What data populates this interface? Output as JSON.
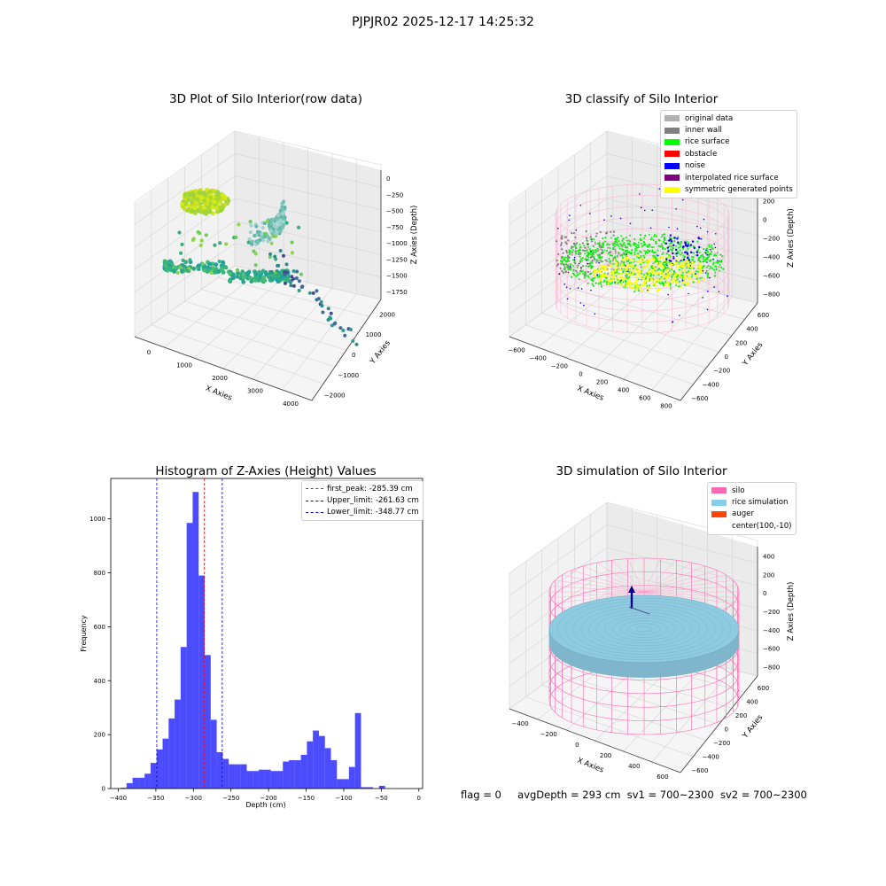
{
  "figure": {
    "suptitle": "PJPJR02 2025-12-17 14:25:32"
  },
  "status": {
    "flag": "flag = 0",
    "avg_depth": "avgDepth = 293 cm",
    "sv1": "sv1 = 700~2300",
    "sv2": "sv2 = 700~2300"
  },
  "panels": {
    "raw": {
      "title": "3D Plot of Silo Interior(row data)",
      "xlabel": "X Axies",
      "ylabel": "Y Axies",
      "zlabel": "Z Axies (Depth)",
      "xticks": [
        "0",
        "1000",
        "2000",
        "3000",
        "4000"
      ],
      "yticks": [
        "−2000",
        "−1000",
        "0",
        "1000",
        "2000"
      ],
      "zticks": [
        "0",
        "−250",
        "−500",
        "−750",
        "−1000",
        "−1250",
        "−1500",
        "−1750"
      ]
    },
    "classify": {
      "title": "3D classify of Silo Interior",
      "xlabel": "X Axies",
      "ylabel": "Y Axies",
      "zlabel": "Z Axies (Depth)",
      "xticks": [
        "−600",
        "−400",
        "−200",
        "0",
        "200",
        "400",
        "600",
        "800"
      ],
      "yticks": [
        "−600",
        "−400",
        "−200",
        "0",
        "200",
        "400",
        "600"
      ],
      "zticks": [
        "400",
        "200",
        "0",
        "−200",
        "−400",
        "−600",
        "−800"
      ],
      "legend": [
        {
          "label": "original data",
          "color": "#b0b0b0"
        },
        {
          "label": "inner wall",
          "color": "#808080"
        },
        {
          "label": "rice surface",
          "color": "#00ff00"
        },
        {
          "label": "obstacle",
          "color": "#ff0000"
        },
        {
          "label": "noise",
          "color": "#0000ff"
        },
        {
          "label": "interpolated rice surface",
          "color": "#800080"
        },
        {
          "label": "symmetric generated points",
          "color": "#ffff00"
        }
      ]
    },
    "histogram": {
      "title": "Histogram of Z-Axies (Height) Values",
      "legend": [
        {
          "label": "first_peak: -285.39 cm",
          "color": "#ff0000"
        },
        {
          "label": "Upper_limit: -261.63 cm",
          "color": "#0000cc"
        },
        {
          "label": "Lower_limit: -348.77 cm",
          "color": "#0000cc"
        }
      ]
    },
    "simulation": {
      "title": "3D simulation of Silo Interior",
      "xlabel": "X Axies",
      "ylabel": "Y Axies",
      "zlabel": "Z Axies (Depth)",
      "xticks": [
        "−400",
        "−200",
        "0",
        "200",
        "400",
        "600"
      ],
      "yticks": [
        "−600",
        "−400",
        "−200",
        "0",
        "200",
        "400",
        "600"
      ],
      "zticks": [
        "400",
        "200",
        "0",
        "−200",
        "−400",
        "−600",
        "−800"
      ],
      "legend": [
        {
          "label": "silo",
          "color": "#ff69b4"
        },
        {
          "label": "rice simulation",
          "color": "#87ceeb"
        },
        {
          "label": "auger",
          "color": "#ff4500"
        },
        {
          "label": "center(100,-10)",
          "color": ""
        }
      ]
    }
  },
  "chart_data": {
    "type": "bar",
    "title": "Histogram of Z-Axies (Height) Values",
    "xlabel": "Depth (cm)",
    "ylabel": "Frequency",
    "xlim": [
      -410,
      5
    ],
    "ylim": [
      0,
      1150
    ],
    "xticks": [
      -400,
      -350,
      -300,
      -250,
      -200,
      -150,
      -100,
      -50,
      0
    ],
    "yticks": [
      0,
      200,
      400,
      600,
      800,
      1000
    ],
    "bar_color": "#0000ff",
    "bins_start": -397,
    "bin_width": 8,
    "values": [
      3,
      20,
      40,
      40,
      55,
      95,
      145,
      185,
      260,
      330,
      525,
      985,
      1100,
      790,
      495,
      255,
      135,
      110,
      90,
      90,
      90,
      65,
      65,
      70,
      70,
      65,
      65,
      100,
      105,
      105,
      125,
      175,
      215,
      195,
      150,
      105,
      35,
      35,
      80,
      280,
      5,
      5,
      0,
      10
    ],
    "vlines": [
      {
        "x": -285.39,
        "color": "#ff0000",
        "label": "first_peak: -285.39 cm"
      },
      {
        "x": -261.63,
        "color": "#0000cc",
        "label": "Upper_limit: -261.63 cm"
      },
      {
        "x": -348.77,
        "color": "#0000cc",
        "label": "Lower_limit: -348.77 cm"
      }
    ],
    "legend_position": "upper right",
    "grid": false
  }
}
